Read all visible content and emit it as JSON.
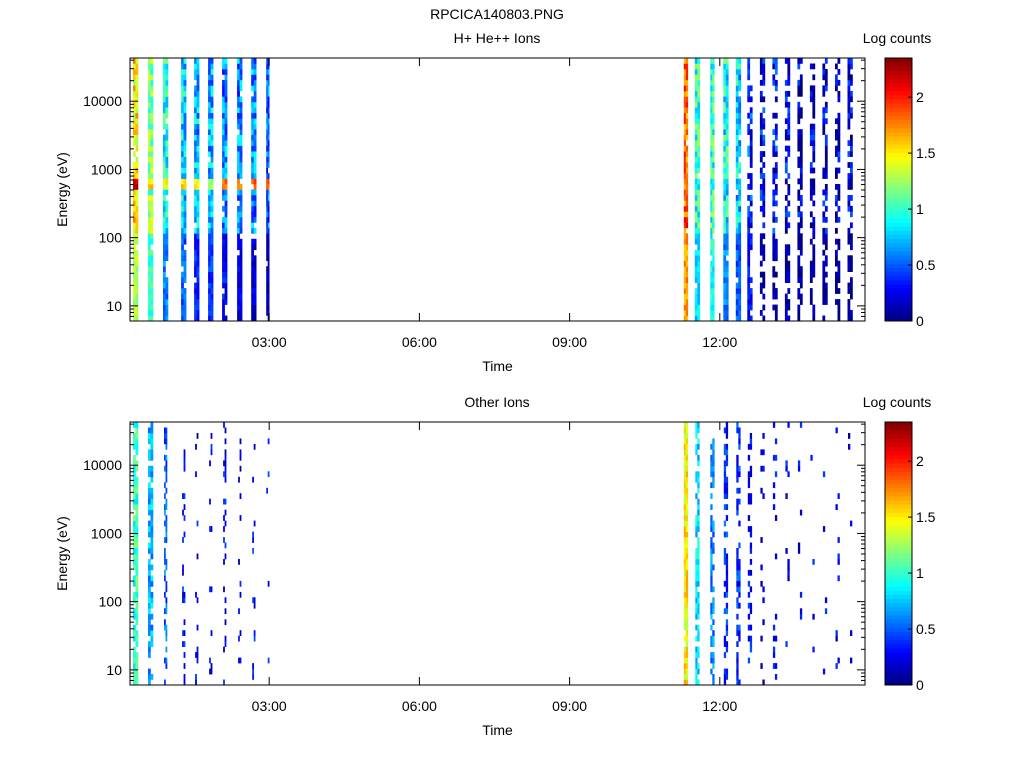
{
  "figure_title": "RPCICA140803.PNG",
  "chart_data": [
    {
      "type": "heatmap",
      "title": "H+ He++ Ions",
      "xlabel": "Time",
      "ylabel": "Energy (eV)",
      "x_unit": "hours (UT)",
      "xlim": [
        0.22,
        14.9
      ],
      "ylim": [
        6,
        43000
      ],
      "yscale": "log",
      "xticks": [
        3,
        6,
        9,
        12
      ],
      "xtick_labels": [
        "03:00",
        "06:00",
        "09:00",
        "12:00"
      ],
      "yticks": [
        10,
        100,
        1000,
        10000
      ],
      "ytick_labels": [
        "10",
        "100",
        "1000",
        "10000"
      ],
      "colorbar": {
        "label": "Log counts",
        "range": [
          0,
          2.35
        ],
        "ticks": [
          0,
          0.5,
          1,
          1.5,
          2
        ],
        "tick_labels": [
          "0",
          "0.5",
          "1",
          "1.5",
          "2"
        ],
        "colormap": "jet"
      },
      "data_gap": [
        3.0,
        11.25
      ],
      "columns": [
        {
          "t": 0.33,
          "w": 0.1,
          "base": 1.5,
          "band": 2.35,
          "low": 1.3
        },
        {
          "t": 0.63,
          "w": 0.1,
          "base": 1.2,
          "band": 1.7,
          "low": 1.0
        },
        {
          "t": 0.93,
          "w": 0.1,
          "base": 0.9,
          "band": 1.6,
          "low": 0.6
        },
        {
          "t": 1.29,
          "w": 0.1,
          "base": 0.8,
          "band": 1.7,
          "low": 0.5
        },
        {
          "t": 1.55,
          "w": 0.1,
          "base": 0.7,
          "band": 1.6,
          "low": 0.4
        },
        {
          "t": 1.83,
          "w": 0.1,
          "base": 0.7,
          "band": 1.4,
          "low": 0.4
        },
        {
          "t": 2.11,
          "w": 0.1,
          "base": 0.6,
          "band": 1.95,
          "low": 0.3
        },
        {
          "t": 2.41,
          "w": 0.1,
          "base": 0.6,
          "band": 1.9,
          "low": 0.2
        },
        {
          "t": 2.69,
          "w": 0.1,
          "base": 0.6,
          "band": 2.0,
          "low": 0.2
        },
        {
          "t": 2.97,
          "w": 0.06,
          "base": 0.5,
          "band": 1.9,
          "low": 0.1
        },
        {
          "t": 11.32,
          "w": 0.08,
          "base": 1.85,
          "band": 1.85,
          "low": 1.7
        },
        {
          "t": 11.55,
          "w": 0.1,
          "base": 1.0,
          "band": 1.0,
          "low": 0.8
        },
        {
          "t": 11.85,
          "w": 0.08,
          "base": 1.0,
          "band": 1.0,
          "low": 0.9
        },
        {
          "t": 12.12,
          "w": 0.1,
          "base": 0.9,
          "band": 0.9,
          "low": 0.6
        },
        {
          "t": 12.37,
          "w": 0.1,
          "base": 0.8,
          "band": 0.8,
          "low": 0.5
        },
        {
          "t": 12.6,
          "w": 0.1,
          "base": 0.4,
          "band": 0.4,
          "low": 0.3
        },
        {
          "t": 12.85,
          "w": 0.1,
          "base": 0.3,
          "band": 0.3,
          "low": 0.1
        },
        {
          "t": 13.1,
          "w": 0.1,
          "base": 0.3,
          "band": 0.3,
          "low": 0.1
        },
        {
          "t": 13.35,
          "w": 0.1,
          "base": 0.25,
          "band": 0.25,
          "low": 0.1
        },
        {
          "t": 13.6,
          "w": 0.1,
          "base": 0.2,
          "band": 0.2,
          "low": 0.05
        },
        {
          "t": 13.85,
          "w": 0.1,
          "base": 0.2,
          "band": 0.2,
          "low": 0.05
        },
        {
          "t": 14.1,
          "w": 0.1,
          "base": 0.2,
          "band": 0.2,
          "low": 0.05
        },
        {
          "t": 14.35,
          "w": 0.1,
          "base": 0.2,
          "band": 0.2,
          "low": 0.05
        },
        {
          "t": 14.6,
          "w": 0.1,
          "base": 0.2,
          "band": 0.2,
          "low": 0.05
        }
      ]
    },
    {
      "type": "heatmap",
      "title": "Other Ions",
      "xlabel": "Time",
      "ylabel": "Energy (eV)",
      "x_unit": "hours (UT)",
      "xlim": [
        0.22,
        14.9
      ],
      "ylim": [
        6,
        43000
      ],
      "yscale": "log",
      "xticks": [
        3,
        6,
        9,
        12
      ],
      "xtick_labels": [
        "03:00",
        "06:00",
        "09:00",
        "12:00"
      ],
      "yticks": [
        10,
        100,
        1000,
        10000
      ],
      "ytick_labels": [
        "10",
        "100",
        "1000",
        "10000"
      ],
      "colorbar": {
        "label": "Log counts",
        "range": [
          0,
          2.35
        ],
        "ticks": [
          0,
          0.5,
          1,
          1.5,
          2
        ],
        "tick_labels": [
          "0",
          "0.5",
          "1",
          "1.5",
          "2"
        ],
        "colormap": "jet"
      },
      "data_gap": [
        3.0,
        11.25
      ],
      "columns": [
        {
          "t": 0.33,
          "w": 0.1,
          "base": 0.8,
          "fill": 0.9
        },
        {
          "t": 0.63,
          "w": 0.1,
          "base": 0.5,
          "fill": 0.8
        },
        {
          "t": 0.93,
          "w": 0.06,
          "base": 0.3,
          "fill": 0.5
        },
        {
          "t": 1.29,
          "w": 0.06,
          "base": 0.1,
          "fill": 0.3
        },
        {
          "t": 1.55,
          "w": 0.06,
          "base": 0.05,
          "fill": 0.15
        },
        {
          "t": 1.83,
          "w": 0.06,
          "base": 0.05,
          "fill": 0.15
        },
        {
          "t": 2.11,
          "w": 0.06,
          "base": 0.05,
          "fill": 0.2
        },
        {
          "t": 2.41,
          "w": 0.06,
          "base": 0.05,
          "fill": 0.2
        },
        {
          "t": 2.69,
          "w": 0.06,
          "base": 0.1,
          "fill": 0.2
        },
        {
          "t": 2.97,
          "w": 0.06,
          "base": 0.1,
          "fill": 0.1
        },
        {
          "t": 11.32,
          "w": 0.08,
          "base": 1.3,
          "fill": 1.0
        },
        {
          "t": 11.55,
          "w": 0.08,
          "base": 0.6,
          "fill": 0.7
        },
        {
          "t": 11.85,
          "w": 0.08,
          "base": 0.4,
          "fill": 0.6
        },
        {
          "t": 12.12,
          "w": 0.08,
          "base": 0.2,
          "fill": 0.6
        },
        {
          "t": 12.37,
          "w": 0.08,
          "base": 0.2,
          "fill": 0.5
        },
        {
          "t": 12.6,
          "w": 0.08,
          "base": 0.1,
          "fill": 0.35
        },
        {
          "t": 12.85,
          "w": 0.08,
          "base": 0.05,
          "fill": 0.25
        },
        {
          "t": 13.1,
          "w": 0.08,
          "base": 0.05,
          "fill": 0.15
        },
        {
          "t": 13.35,
          "w": 0.08,
          "base": 0.05,
          "fill": 0.12
        },
        {
          "t": 13.6,
          "w": 0.08,
          "base": 0.05,
          "fill": 0.1
        },
        {
          "t": 13.85,
          "w": 0.08,
          "base": 0.05,
          "fill": 0.1
        },
        {
          "t": 14.1,
          "w": 0.08,
          "base": 0.05,
          "fill": 0.1
        },
        {
          "t": 14.35,
          "w": 0.08,
          "base": 0.05,
          "fill": 0.1
        },
        {
          "t": 14.6,
          "w": 0.08,
          "base": 0.05,
          "fill": 0.1
        }
      ]
    }
  ]
}
